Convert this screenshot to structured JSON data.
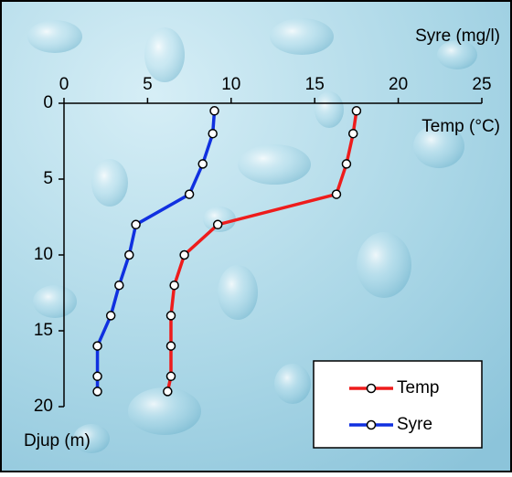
{
  "chart_data": {
    "type": "line",
    "x_label": "Syre (mg/l)",
    "y_label": "Djup (m)",
    "annotation": "Temp (°C)",
    "y": [
      0.5,
      2,
      4,
      6,
      8,
      10,
      12,
      14,
      16,
      18,
      19
    ],
    "series": [
      {
        "name": "Temp",
        "color": "#ee1c1c",
        "values": [
          17.5,
          17.3,
          16.9,
          16.3,
          9.2,
          7.2,
          6.6,
          6.4,
          6.4,
          6.4,
          6.2
        ]
      },
      {
        "name": "Syre",
        "color": "#1030e0",
        "values": [
          9.0,
          8.9,
          8.3,
          7.5,
          4.3,
          3.9,
          3.3,
          2.8,
          2.0,
          2.0,
          2.0
        ]
      }
    ],
    "xlim": [
      0,
      25
    ],
    "xticks": [
      0,
      5,
      10,
      15,
      20,
      25
    ],
    "ylim": [
      0,
      20
    ],
    "yticks": [
      0,
      5,
      10,
      15,
      20
    ],
    "y_inverted": true,
    "x_axis_position": "top",
    "legend": "lower right"
  }
}
